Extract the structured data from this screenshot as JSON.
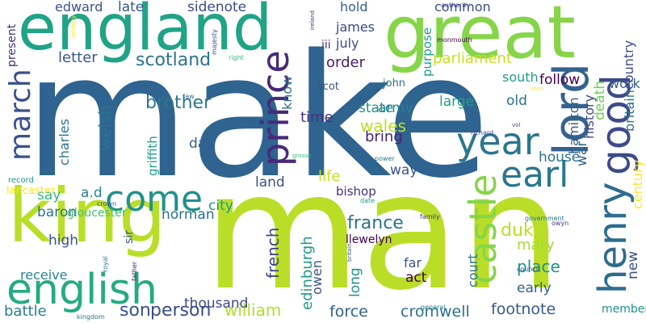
{
  "words": [
    {
      "text": "make",
      "color": "#2f6390"
    },
    {
      "text": "man",
      "color": "#bade28"
    },
    {
      "text": "great",
      "color": "#86d549"
    },
    {
      "text": "england",
      "color": "#20a386"
    },
    {
      "text": "king",
      "color": "#bade28"
    },
    {
      "text": "english",
      "color": "#25ab82"
    },
    {
      "text": "prince",
      "color": "#472b7a"
    },
    {
      "text": "lord",
      "color": "#33638d"
    },
    {
      "text": "year",
      "color": "#2a778e"
    },
    {
      "text": "good",
      "color": "#3e4a89"
    },
    {
      "text": "castle",
      "color": "#86d549"
    },
    {
      "text": "henry",
      "color": "#2f6c8e"
    },
    {
      "text": "earl",
      "color": "#2a788e"
    },
    {
      "text": "come",
      "color": "#21918c"
    },
    {
      "text": "march",
      "color": "#3b518b"
    },
    {
      "text": "william",
      "color": "#b0dd2f"
    },
    {
      "text": "person",
      "color": "#3d4d8a"
    },
    {
      "text": "son",
      "color": "#3b518b"
    },
    {
      "text": "scotland",
      "color": "#2c728e"
    },
    {
      "text": "brother",
      "color": "#2a788e"
    },
    {
      "text": "parliament",
      "color": "#c8e020"
    },
    {
      "text": "france",
      "color": "#2c728e"
    },
    {
      "text": "duke",
      "color": "#bddf26"
    },
    {
      "text": "mary",
      "color": "#a5db36"
    },
    {
      "text": "place",
      "color": "#20938c"
    },
    {
      "text": "cromwell",
      "color": "#2d718e"
    },
    {
      "text": "force",
      "color": "#34618d"
    },
    {
      "text": "footnote",
      "color": "#38598c"
    },
    {
      "text": "french",
      "color": "#404688"
    },
    {
      "text": "edinburgh",
      "color": "#1e9b8a"
    },
    {
      "text": "wales",
      "color": "#bddf26"
    },
    {
      "text": "army",
      "color": "#26828e"
    },
    {
      "text": "state",
      "color": "#21918c"
    },
    {
      "text": "large",
      "color": "#1fa088"
    },
    {
      "text": "follow",
      "color": "#440154"
    },
    {
      "text": "welsh",
      "color": "#2c738e"
    },
    {
      "text": "letter",
      "color": "#39568c"
    },
    {
      "text": "edward",
      "color": "#3b528b"
    },
    {
      "text": "late",
      "color": "#38588c"
    },
    {
      "text": "sidenote",
      "color": "#3e4c8a"
    },
    {
      "text": "common",
      "color": "#3d4e8a"
    },
    {
      "text": "time",
      "color": "#46327e"
    },
    {
      "text": "hold",
      "color": "#355f8d"
    },
    {
      "text": "james",
      "color": "#3f4889"
    },
    {
      "text": "july",
      "color": "#3e4a89"
    },
    {
      "text": "order",
      "color": "#481b6d"
    },
    {
      "text": "death",
      "color": "#6ece58"
    },
    {
      "text": "work",
      "color": "#34608d"
    },
    {
      "text": "country",
      "color": "#3e4989"
    },
    {
      "text": "present",
      "color": "#46307e"
    },
    {
      "text": "south",
      "color": "#1fa088"
    },
    {
      "text": "old",
      "color": "#2d708e"
    },
    {
      "text": "bring",
      "color": "#482475"
    },
    {
      "text": "way",
      "color": "#3b528b"
    },
    {
      "text": "house",
      "color": "#2c728e"
    },
    {
      "text": "history",
      "color": "#3f4788"
    },
    {
      "text": "britain",
      "color": "#2c738e"
    },
    {
      "text": "hamilton",
      "color": "#365c8d"
    },
    {
      "text": "war",
      "color": "#31668e"
    },
    {
      "text": "century",
      "color": "#fde725"
    },
    {
      "text": "day",
      "color": "#35608d"
    },
    {
      "text": "charles",
      "color": "#2a768e"
    },
    {
      "text": "griffith",
      "color": "#1f9e89"
    },
    {
      "text": "know",
      "color": "#2e6f8e"
    },
    {
      "text": "purpose",
      "color": "#1f9e89"
    },
    {
      "text": "life",
      "color": "#c8e020"
    },
    {
      "text": "land",
      "color": "#3b518b"
    },
    {
      "text": "a.d",
      "color": "#25858e"
    },
    {
      "text": "say",
      "color": "#31b57b"
    },
    {
      "text": "city",
      "color": "#1e9c89"
    },
    {
      "text": "norman",
      "color": "#2d708e"
    },
    {
      "text": "baron",
      "color": "#2c728e"
    },
    {
      "text": "gloucester",
      "color": "#4ac16d"
    },
    {
      "text": "high",
      "color": "#3b518b"
    },
    {
      "text": "sir",
      "color": "#38598c"
    },
    {
      "text": "receive",
      "color": "#24868e"
    },
    {
      "text": "battle",
      "color": "#26828e"
    },
    {
      "text": "thousand",
      "color": "#3e4989"
    },
    {
      "text": "long",
      "color": "#21918c"
    },
    {
      "text": "owen",
      "color": "#3b528b"
    },
    {
      "text": "far",
      "color": "#3b528b"
    },
    {
      "text": "act",
      "color": "#440154"
    },
    {
      "text": "court",
      "color": "#2e6f8e"
    },
    {
      "text": "early",
      "color": "#35608d"
    },
    {
      "text": "member",
      "color": "#21918c"
    },
    {
      "text": "new",
      "color": "#3b528b"
    },
    {
      "text": "bishop",
      "color": "#46327e"
    },
    {
      "text": "llewelyn",
      "color": "#440154"
    },
    {
      "text": "lancaster",
      "color": "#fde725"
    },
    {
      "text": "john",
      "color": "#2d708e"
    },
    {
      "text": "scot",
      "color": "#3b528b"
    },
    {
      "text": "iii",
      "color": "#453781"
    },
    {
      "text": "record",
      "color": "#20938c"
    },
    {
      "text": "monmouth",
      "color": "#440154"
    },
    {
      "text": "authority",
      "color": "#3f4788"
    },
    {
      "text": "ireland",
      "color": "#472c7a"
    },
    {
      "text": "majesty",
      "color": "#3e4a89"
    },
    {
      "text": "right",
      "color": "#35b779"
    },
    {
      "text": "law",
      "color": "#2d708e"
    },
    {
      "text": "richard",
      "color": "#3b528b"
    },
    {
      "text": "power",
      "color": "#2a788e"
    },
    {
      "text": "date",
      "color": "#1f9e89"
    },
    {
      "text": "government",
      "color": "#2c728e"
    },
    {
      "text": "owyn",
      "color": "#453781"
    },
    {
      "text": "family",
      "color": "#46307e"
    },
    {
      "text": "crown",
      "color": "#3b528b"
    },
    {
      "text": "father",
      "color": "#482475"
    },
    {
      "text": "royal",
      "color": "#2c728e"
    },
    {
      "text": "council",
      "color": "#3b528b"
    },
    {
      "text": "general",
      "color": "#26828e"
    },
    {
      "text": "kingdom",
      "color": "#2c728e"
    },
    {
      "text": "britain",
      "color": "#3b528b"
    },
    {
      "text": "vol",
      "color": "#3e4a89"
    },
    {
      "text": "soon",
      "color": "#fde725"
    },
    {
      "text": "enemy",
      "color": "#fde725"
    },
    {
      "text": "grosse",
      "color": "#35b779"
    }
  ]
}
